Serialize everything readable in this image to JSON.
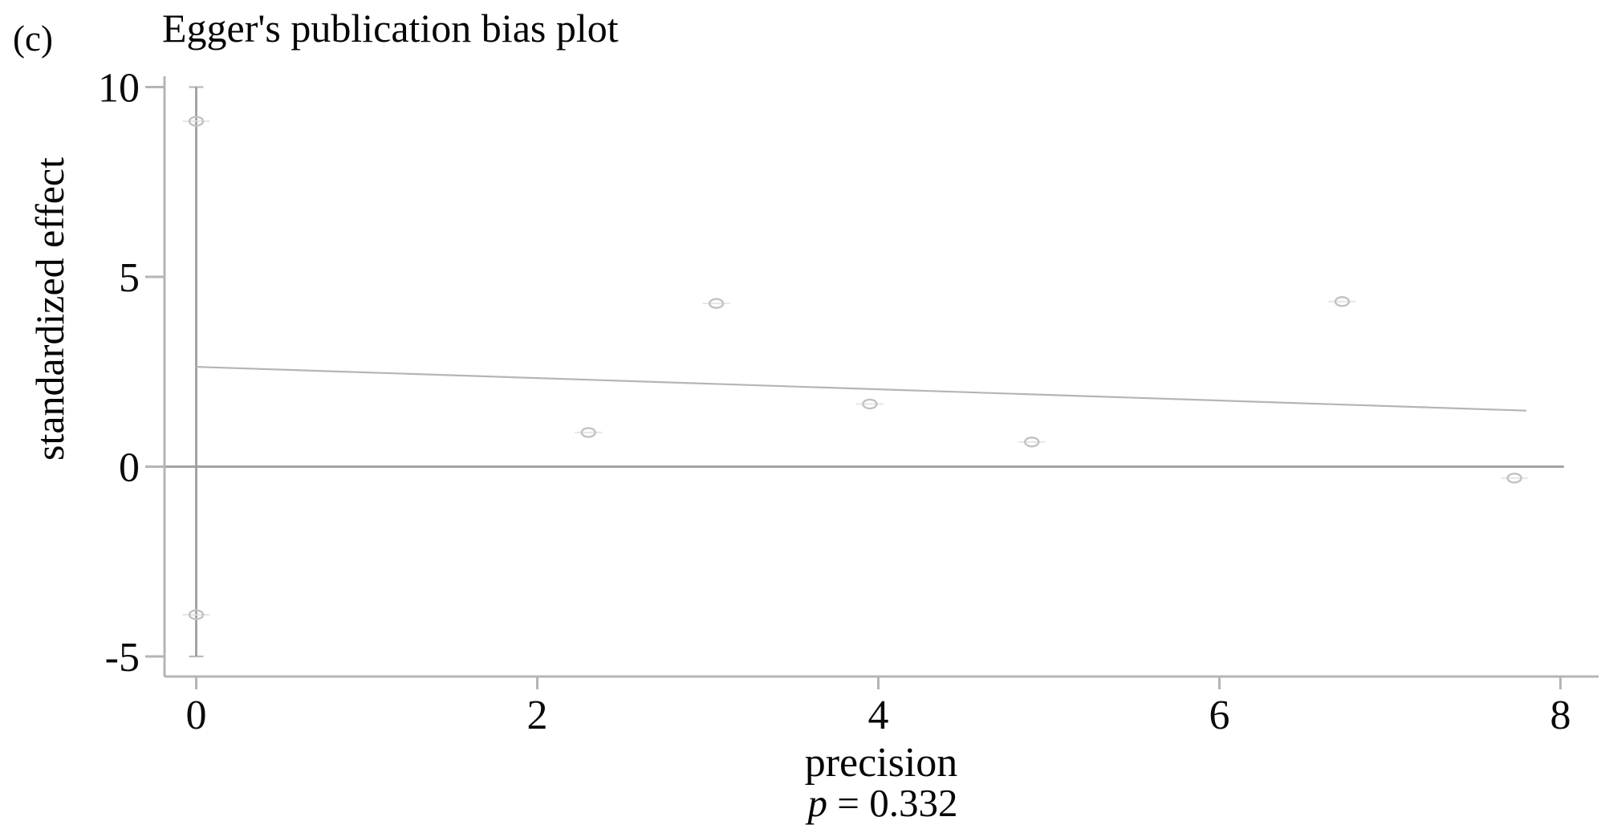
{
  "panel_label": "(c)",
  "chart_data": {
    "type": "scatter",
    "title": "Egger's publication bias plot",
    "xlabel": "precision",
    "ylabel": "standardized effect",
    "annotation": {
      "var": "p",
      "rest": " = 0.332"
    },
    "xlim": [
      0,
      8.2
    ],
    "ylim": [
      -5.5,
      10.2
    ],
    "x_ticks": [
      0,
      2,
      4,
      6,
      8
    ],
    "y_ticks": [
      10,
      5,
      0,
      -5
    ],
    "grid": false,
    "legend": null,
    "points": [
      {
        "x": 0.0,
        "y": 9.1
      },
      {
        "x": 0.0,
        "y": -3.9
      },
      {
        "x": 2.3,
        "y": 0.9
      },
      {
        "x": 3.05,
        "y": 4.3
      },
      {
        "x": 3.95,
        "y": 1.65
      },
      {
        "x": 4.9,
        "y": 0.65
      },
      {
        "x": 6.72,
        "y": 4.35
      },
      {
        "x": 7.73,
        "y": -0.3
      }
    ],
    "regression_line": {
      "intercept": 2.63,
      "slope": -0.148,
      "x_from": 0,
      "x_to": 7.8
    },
    "intercept_ci_line": {
      "x": 0,
      "y_from": -5.0,
      "y_to": 10.0
    },
    "reference_line_y": 0,
    "colors": {
      "text": "#0a0a0a",
      "axis": "#b5b5b5",
      "zero_line": "#a3a3a3",
      "ci_line": "#9e9e9e",
      "regression": "#b5b5b5",
      "marker": "#c2c2c2",
      "marker_tail": "#dedede"
    }
  }
}
